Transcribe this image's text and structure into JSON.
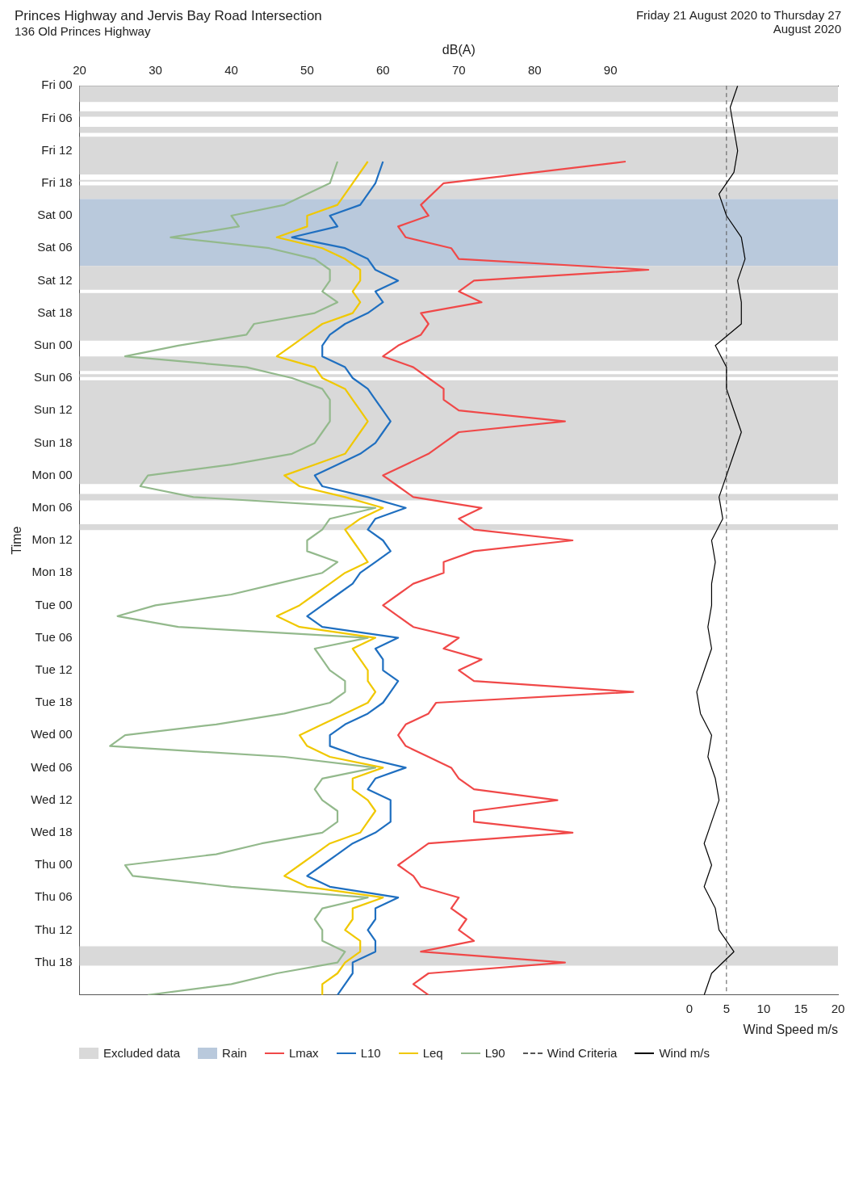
{
  "chart_data": {
    "type": "line",
    "orientation": "horizontal",
    "title": "Princes Highway and Jervis Bay Road Intersection",
    "subtitle": "136 Old Princes Highway",
    "annotations": [
      "Friday 21 August 2020 to Thursday 27 August 2020"
    ],
    "xlabel": "dB(A)",
    "ylabel": "Time",
    "x2label": "Wind Speed m/s",
    "xlim": [
      20,
      120
    ],
    "xticks": [
      20,
      30,
      40,
      50,
      60,
      70,
      80,
      90
    ],
    "x2lim": [
      -82,
      20
    ],
    "x2ticks": [
      0,
      5,
      10,
      15,
      20
    ],
    "ylim": [
      "2020-08-28T00:00",
      "2020-08-21T00:00"
    ],
    "yticks": [
      {
        "value": "2020-08-21T00:00",
        "label": "Fri 00"
      },
      {
        "value": "2020-08-21T06:00",
        "label": "Fri 06"
      },
      {
        "value": "2020-08-21T12:00",
        "label": "Fri 12"
      },
      {
        "value": "2020-08-21T18:00",
        "label": "Fri 18"
      },
      {
        "value": "2020-08-22T00:00",
        "label": "Sat 00"
      },
      {
        "value": "2020-08-22T06:00",
        "label": "Sat 06"
      },
      {
        "value": "2020-08-22T12:00",
        "label": "Sat 12"
      },
      {
        "value": "2020-08-22T18:00",
        "label": "Sat 18"
      },
      {
        "value": "2020-08-23T00:00",
        "label": "Sun 00"
      },
      {
        "value": "2020-08-23T06:00",
        "label": "Sun 06"
      },
      {
        "value": "2020-08-23T12:00",
        "label": "Sun 12"
      },
      {
        "value": "2020-08-23T18:00",
        "label": "Sun 18"
      },
      {
        "value": "2020-08-24T00:00",
        "label": "Mon 00"
      },
      {
        "value": "2020-08-24T06:00",
        "label": "Mon 06"
      },
      {
        "value": "2020-08-24T12:00",
        "label": "Mon 12"
      },
      {
        "value": "2020-08-24T18:00",
        "label": "Mon 18"
      },
      {
        "value": "2020-08-25T00:00",
        "label": "Tue 00"
      },
      {
        "value": "2020-08-25T06:00",
        "label": "Tue 06"
      },
      {
        "value": "2020-08-25T12:00",
        "label": "Tue 12"
      },
      {
        "value": "2020-08-25T18:00",
        "label": "Tue 18"
      },
      {
        "value": "2020-08-26T00:00",
        "label": "Wed 00"
      },
      {
        "value": "2020-08-26T06:00",
        "label": "Wed 06"
      },
      {
        "value": "2020-08-26T12:00",
        "label": "Wed 12"
      },
      {
        "value": "2020-08-26T18:00",
        "label": "Wed 18"
      },
      {
        "value": "2020-08-27T00:00",
        "label": "Thu 00"
      },
      {
        "value": "2020-08-27T06:00",
        "label": "Thu 06"
      },
      {
        "value": "2020-08-27T12:00",
        "label": "Thu 12"
      },
      {
        "value": "2020-08-27T18:00",
        "label": "Thu 18"
      }
    ],
    "legend": "bottom",
    "line_style": "solid",
    "x": [
      "2020-08-21T14:00",
      "2020-08-21T18:00",
      "2020-08-21T22:00",
      "2020-08-22T00:00",
      "2020-08-22T02:00",
      "2020-08-22T04:00",
      "2020-08-22T06:00",
      "2020-08-22T08:00",
      "2020-08-22T10:00",
      "2020-08-22T12:00",
      "2020-08-22T14:00",
      "2020-08-22T16:00",
      "2020-08-22T18:00",
      "2020-08-22T20:00",
      "2020-08-22T22:00",
      "2020-08-23T00:00",
      "2020-08-23T02:00",
      "2020-08-23T04:00",
      "2020-08-23T06:00",
      "2020-08-23T08:00",
      "2020-08-23T10:00",
      "2020-08-23T12:00",
      "2020-08-23T14:00",
      "2020-08-23T16:00",
      "2020-08-23T18:00",
      "2020-08-23T20:00",
      "2020-08-23T22:00",
      "2020-08-24T00:00",
      "2020-08-24T02:00",
      "2020-08-24T04:00",
      "2020-08-24T06:00",
      "2020-08-24T08:00",
      "2020-08-24T10:00",
      "2020-08-24T12:00",
      "2020-08-24T14:00",
      "2020-08-24T16:00",
      "2020-08-24T18:00",
      "2020-08-24T20:00",
      "2020-08-24T22:00",
      "2020-08-25T00:00",
      "2020-08-25T02:00",
      "2020-08-25T04:00",
      "2020-08-25T06:00",
      "2020-08-25T08:00",
      "2020-08-25T10:00",
      "2020-08-25T12:00",
      "2020-08-25T14:00",
      "2020-08-25T16:00",
      "2020-08-25T18:00",
      "2020-08-25T20:00",
      "2020-08-25T22:00",
      "2020-08-26T00:00",
      "2020-08-26T02:00",
      "2020-08-26T04:00",
      "2020-08-26T06:00",
      "2020-08-26T08:00",
      "2020-08-26T10:00",
      "2020-08-26T12:00",
      "2020-08-26T14:00",
      "2020-08-26T16:00",
      "2020-08-26T18:00",
      "2020-08-26T20:00",
      "2020-08-26T22:00",
      "2020-08-27T00:00",
      "2020-08-27T02:00",
      "2020-08-27T04:00",
      "2020-08-27T06:00",
      "2020-08-27T08:00",
      "2020-08-27T10:00",
      "2020-08-27T12:00",
      "2020-08-27T14:00",
      "2020-08-27T16:00",
      "2020-08-27T18:00",
      "2020-08-27T20:00",
      "2020-08-27T22:00",
      "2020-08-28T00:00"
    ],
    "series": [
      {
        "name": "Lmax",
        "color": "#f04848",
        "values": [
          92,
          68,
          65,
          66,
          62,
          63,
          69,
          70,
          95,
          72,
          70,
          73,
          65,
          66,
          65,
          62,
          60,
          64,
          66,
          68,
          68,
          70,
          84,
          70,
          68,
          66,
          63,
          60,
          62,
          64,
          73,
          70,
          72,
          85,
          72,
          68,
          68,
          64,
          62,
          60,
          62,
          64,
          70,
          68,
          73,
          70,
          72,
          93,
          67,
          66,
          63,
          62,
          63,
          66,
          69,
          70,
          72,
          83,
          72,
          72,
          85,
          66,
          64,
          62,
          64,
          65,
          70,
          69,
          71,
          70,
          72,
          65,
          84,
          66,
          64,
          66
        ]
      },
      {
        "name": "L10",
        "color": "#1f6fc0",
        "values": [
          60,
          59,
          57,
          53,
          54,
          48,
          55,
          58,
          59,
          62,
          59,
          60,
          58,
          55,
          53,
          52,
          52,
          55,
          56,
          58,
          59,
          60,
          61,
          60,
          59,
          57,
          54,
          51,
          52,
          58,
          63,
          59,
          58,
          60,
          61,
          59,
          57,
          56,
          54,
          52,
          50,
          52,
          62,
          59,
          60,
          60,
          62,
          61,
          60,
          58,
          55,
          53,
          53,
          57,
          63,
          59,
          58,
          61,
          61,
          61,
          59,
          56,
          54,
          52,
          50,
          53,
          62,
          59,
          59,
          58,
          59,
          59,
          56,
          56,
          55,
          54
        ]
      },
      {
        "name": "Leq",
        "color": "#f0c800",
        "values": [
          58,
          56,
          54,
          50,
          50,
          46,
          52,
          55,
          57,
          57,
          56,
          57,
          56,
          52,
          50,
          48,
          46,
          51,
          52,
          55,
          56,
          57,
          58,
          57,
          56,
          55,
          51,
          47,
          49,
          55,
          60,
          57,
          55,
          56,
          57,
          58,
          55,
          53,
          51,
          49,
          46,
          49,
          59,
          56,
          57,
          58,
          58,
          59,
          58,
          55,
          52,
          49,
          50,
          53,
          60,
          56,
          56,
          58,
          59,
          58,
          57,
          53,
          51,
          49,
          47,
          50,
          60,
          56,
          56,
          55,
          57,
          57,
          55,
          54,
          52,
          52
        ]
      },
      {
        "name": "L90",
        "color": "#93b98c",
        "values": [
          54,
          53,
          47,
          40,
          41,
          32,
          45,
          51,
          53,
          53,
          52,
          54,
          51,
          43,
          42,
          33,
          26,
          42,
          48,
          52,
          53,
          53,
          53,
          52,
          51,
          48,
          40,
          29,
          28,
          35,
          59,
          53,
          52,
          50,
          50,
          54,
          52,
          46,
          40,
          30,
          25,
          33,
          58,
          51,
          52,
          53,
          55,
          55,
          53,
          47,
          38,
          26,
          24,
          47,
          59,
          52,
          51,
          52,
          54,
          54,
          52,
          44,
          38,
          26,
          27,
          40,
          58,
          52,
          51,
          52,
          52,
          55,
          54,
          46,
          40,
          29
        ]
      },
      {
        "name": "Wind m/s",
        "color": "#000000",
        "axis": "x2",
        "x": [
          "2020-08-21T00:00",
          "2020-08-21T04:00",
          "2020-08-21T08:00",
          "2020-08-21T12:00",
          "2020-08-21T16:00",
          "2020-08-21T20:00",
          "2020-08-22T00:00",
          "2020-08-22T04:00",
          "2020-08-22T08:00",
          "2020-08-22T12:00",
          "2020-08-22T16:00",
          "2020-08-22T20:00",
          "2020-08-23T00:00",
          "2020-08-23T04:00",
          "2020-08-23T08:00",
          "2020-08-23T12:00",
          "2020-08-23T16:00",
          "2020-08-23T20:00",
          "2020-08-24T00:00",
          "2020-08-24T04:00",
          "2020-08-24T08:00",
          "2020-08-24T12:00",
          "2020-08-24T16:00",
          "2020-08-24T20:00",
          "2020-08-25T00:00",
          "2020-08-25T04:00",
          "2020-08-25T08:00",
          "2020-08-25T12:00",
          "2020-08-25T16:00",
          "2020-08-25T20:00",
          "2020-08-26T00:00",
          "2020-08-26T04:00",
          "2020-08-26T08:00",
          "2020-08-26T12:00",
          "2020-08-26T16:00",
          "2020-08-26T20:00",
          "2020-08-27T00:00",
          "2020-08-27T04:00",
          "2020-08-27T08:00",
          "2020-08-27T12:00",
          "2020-08-27T16:00",
          "2020-08-27T20:00",
          "2020-08-28T00:00"
        ],
        "values": [
          6.5,
          5.5,
          6,
          6.5,
          6,
          4,
          5,
          7,
          7.5,
          6.5,
          7,
          7,
          3.5,
          5,
          5,
          6,
          7,
          6,
          5,
          4,
          4.5,
          3,
          3.5,
          3,
          3,
          2.5,
          3,
          2,
          1,
          1.5,
          3,
          2.5,
          3.5,
          4,
          3,
          2,
          3,
          2,
          3.5,
          4,
          6,
          3,
          2
        ]
      }
    ],
    "bands": [
      {
        "axis": "y",
        "from": "2020-08-21T00:00",
        "to": "2020-08-21T03:00",
        "color": "#d9d9d9",
        "label": "Excluded data"
      },
      {
        "axis": "y",
        "from": "2020-08-21T20:54",
        "to": "2020-08-22T09:18",
        "color": "#b9c9dc",
        "label": "Rain"
      },
      {
        "axis": "y",
        "from": "2020-08-21T04:42",
        "to": "2020-08-21T05:42",
        "color": "#d9d9d9"
      },
      {
        "axis": "y",
        "from": "2020-08-21T07:36",
        "to": "2020-08-21T08:42",
        "color": "#d9d9d9"
      },
      {
        "axis": "y",
        "from": "2020-08-21T09:24",
        "to": "2020-08-21T16:24",
        "color": "#d9d9d9"
      },
      {
        "axis": "y",
        "from": "2020-08-21T17:24",
        "to": "2020-08-21T17:42",
        "color": "#d9d9d9"
      },
      {
        "axis": "y",
        "from": "2020-08-21T18:24",
        "to": "2020-08-21T20:54",
        "color": "#d9d9d9"
      },
      {
        "axis": "y",
        "from": "2020-08-22T09:18",
        "to": "2020-08-22T13:42",
        "color": "#d9d9d9"
      },
      {
        "axis": "y",
        "from": "2020-08-22T14:18",
        "to": "2020-08-22T23:06",
        "color": "#d9d9d9"
      },
      {
        "axis": "y",
        "from": "2020-08-23T02:00",
        "to": "2020-08-23T04:42",
        "color": "#d9d9d9"
      },
      {
        "axis": "y",
        "from": "2020-08-23T05:18",
        "to": "2020-08-23T05:48",
        "color": "#d9d9d9"
      },
      {
        "axis": "y",
        "from": "2020-08-23T06:24",
        "to": "2020-08-24T01:36",
        "color": "#d9d9d9"
      },
      {
        "axis": "y",
        "from": "2020-08-24T03:24",
        "to": "2020-08-24T04:36",
        "color": "#d9d9d9"
      },
      {
        "axis": "y",
        "from": "2020-08-24T09:00",
        "to": "2020-08-24T10:06",
        "color": "#d9d9d9"
      },
      {
        "axis": "y",
        "from": "2020-08-27T15:00",
        "to": "2020-08-27T18:36",
        "color": "#d9d9d9"
      }
    ],
    "ref_lines": [
      {
        "axis": "x2",
        "value": 5,
        "label": "Wind Criteria",
        "color": "#555555",
        "line_style": "dashed"
      }
    ]
  }
}
